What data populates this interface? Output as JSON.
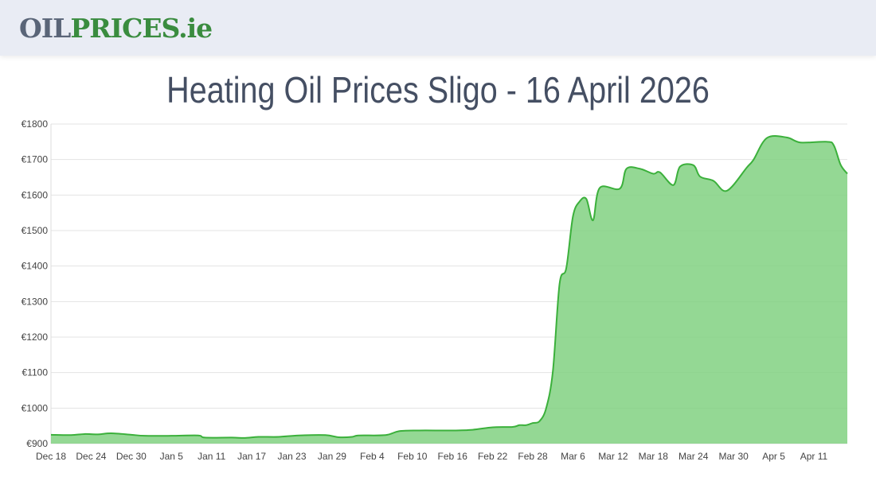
{
  "header": {
    "logo_part1": "OIL",
    "logo_part2": "PRICES.ie"
  },
  "title": "Heating Oil Prices Sligo - 16 April 2026",
  "colors": {
    "line": "#3bb03b",
    "fill": "#7ccf7c",
    "logo_gray": "#5a6578",
    "logo_green": "#3a8c3f",
    "title": "#454f63"
  },
  "chart_data": {
    "type": "area",
    "title": "Heating Oil Prices Sligo - 16 April 2026",
    "xlabel": "",
    "ylabel": "",
    "ylim": [
      900,
      1800
    ],
    "xlim": [
      "2025-12-18",
      "2026-04-16"
    ],
    "grid": true,
    "y_ticks": [
      "€900",
      "€1000",
      "€1100",
      "€1200",
      "€1300",
      "€1400",
      "€1500",
      "€1600",
      "€1700",
      "€1800"
    ],
    "y_tick_values": [
      900,
      1000,
      1100,
      1200,
      1300,
      1400,
      1500,
      1600,
      1700,
      1800
    ],
    "x_ticks": [
      "Dec 18",
      "Dec 24",
      "Dec 30",
      "Jan 5",
      "Jan 11",
      "Jan 17",
      "Jan 23",
      "Jan 29",
      "Feb 4",
      "Feb 10",
      "Feb 16",
      "Feb 22",
      "Feb 28",
      "Mar 6",
      "Mar 12",
      "Mar 18",
      "Mar 24",
      "Mar 30",
      "Apr 5",
      "Apr 11"
    ],
    "x_tick_dates": [
      "2025-12-18",
      "2025-12-24",
      "2025-12-30",
      "2026-01-05",
      "2026-01-11",
      "2026-01-17",
      "2026-01-23",
      "2026-01-29",
      "2026-02-04",
      "2026-02-10",
      "2026-02-16",
      "2026-02-22",
      "2026-02-28",
      "2026-03-06",
      "2026-03-12",
      "2026-03-18",
      "2026-03-24",
      "2026-03-30",
      "2026-04-05",
      "2026-04-11"
    ],
    "points": [
      [
        "2025-12-18",
        925
      ],
      [
        "2025-12-21",
        924
      ],
      [
        "2025-12-23",
        927
      ],
      [
        "2025-12-25",
        926
      ],
      [
        "2025-12-27",
        929
      ],
      [
        "2025-12-30",
        925
      ],
      [
        "2026-01-01",
        922
      ],
      [
        "2026-01-05",
        922
      ],
      [
        "2026-01-09",
        923
      ],
      [
        "2026-01-10",
        917
      ],
      [
        "2026-01-14",
        917
      ],
      [
        "2026-01-16",
        916
      ],
      [
        "2026-01-18",
        919
      ],
      [
        "2026-01-21",
        919
      ],
      [
        "2026-01-24",
        923
      ],
      [
        "2026-01-28",
        924
      ],
      [
        "2026-01-30",
        918
      ],
      [
        "2026-02-01",
        919
      ],
      [
        "2026-02-02",
        923
      ],
      [
        "2026-02-06",
        924
      ],
      [
        "2026-02-08",
        935
      ],
      [
        "2026-02-11",
        937
      ],
      [
        "2026-02-16",
        937
      ],
      [
        "2026-02-19",
        939
      ],
      [
        "2026-02-22",
        946
      ],
      [
        "2026-02-25",
        947
      ],
      [
        "2026-02-26",
        952
      ],
      [
        "2026-02-27",
        952
      ],
      [
        "2026-02-28",
        958
      ],
      [
        "2026-03-01",
        963
      ],
      [
        "2026-03-02",
        1000
      ],
      [
        "2026-03-03",
        1104
      ],
      [
        "2026-03-04",
        1350
      ],
      [
        "2026-03-05",
        1394
      ],
      [
        "2026-03-06",
        1540
      ],
      [
        "2026-03-07",
        1582
      ],
      [
        "2026-03-08",
        1589
      ],
      [
        "2026-03-09",
        1529
      ],
      [
        "2026-03-10",
        1620
      ],
      [
        "2026-03-13",
        1618
      ],
      [
        "2026-03-14",
        1674
      ],
      [
        "2026-03-16",
        1674
      ],
      [
        "2026-03-18",
        1660
      ],
      [
        "2026-03-19",
        1664
      ],
      [
        "2026-03-21",
        1628
      ],
      [
        "2026-03-22",
        1680
      ],
      [
        "2026-03-24",
        1684
      ],
      [
        "2026-03-25",
        1652
      ],
      [
        "2026-03-27",
        1640
      ],
      [
        "2026-03-29",
        1612
      ],
      [
        "2026-04-01",
        1678
      ],
      [
        "2026-04-02",
        1700
      ],
      [
        "2026-04-04",
        1761
      ],
      [
        "2026-04-07",
        1762
      ],
      [
        "2026-04-09",
        1748
      ],
      [
        "2026-04-13",
        1750
      ],
      [
        "2026-04-14",
        1739
      ],
      [
        "2026-04-15",
        1685
      ],
      [
        "2026-04-16",
        1660
      ]
    ]
  }
}
